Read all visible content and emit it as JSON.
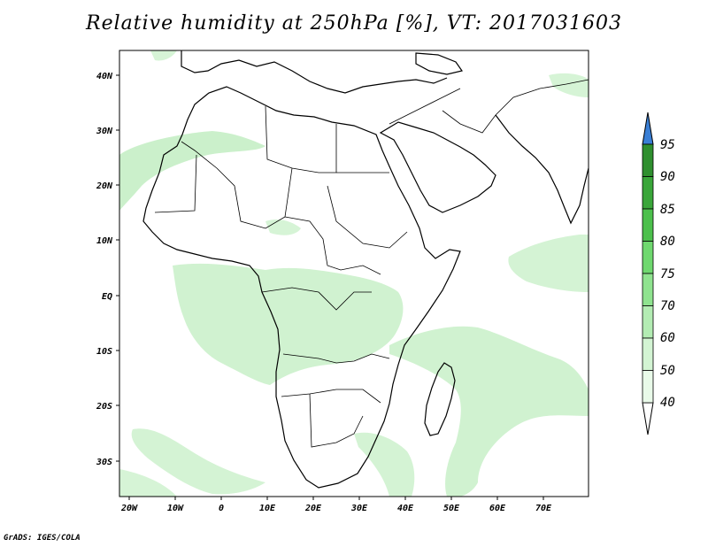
{
  "title": "Relative humidity at 250hPa [%], VT: 2017031603",
  "map": {
    "lat_labels": [
      "40N",
      "30N",
      "20N",
      "10N",
      "EQ",
      "10S",
      "20S",
      "30S"
    ],
    "lon_labels": [
      "20W",
      "10W",
      "0",
      "10E",
      "20E",
      "30E",
      "40E",
      "50E",
      "60E",
      "70E"
    ],
    "extent": {
      "lon": [
        -22,
        80
      ],
      "lat": [
        -37,
        45
      ]
    }
  },
  "colorbar": {
    "labels": [
      "95",
      "90",
      "85",
      "80",
      "75",
      "70",
      "60",
      "50",
      "40"
    ],
    "colors": [
      "#2f8f2f",
      "#3aa63a",
      "#4cc04c",
      "#6fd86f",
      "#8fe38f",
      "#b3ecb3",
      "#d3f4d3",
      "#e9fae9"
    ],
    "top_arrow_color": "#3a7fd5",
    "bottom_arrow_color": "#ffffff"
  },
  "credit": "GrADS: IGES/COLA"
}
